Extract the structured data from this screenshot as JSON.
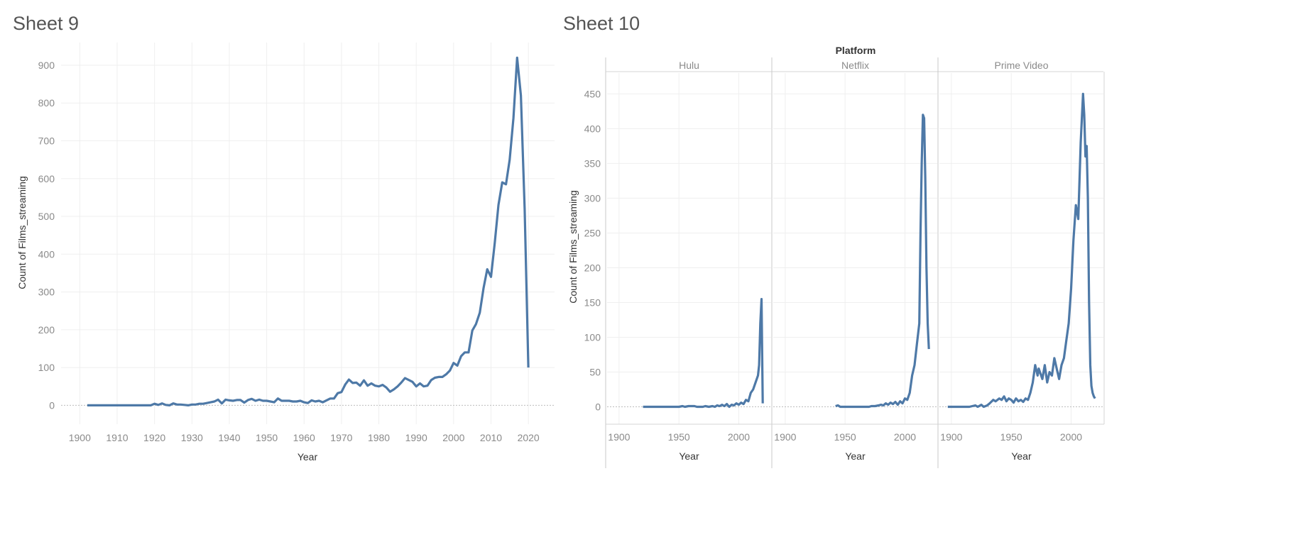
{
  "sheet9": {
    "title": "Sheet 9",
    "chart_data": {
      "type": "line",
      "title": "Sheet 9",
      "xlabel": "Year",
      "ylabel": "Count of Films_streaming",
      "xlim": [
        1895,
        2027
      ],
      "ylim": [
        -50,
        960
      ],
      "xticks": [
        "1900",
        "1910",
        "1920",
        "1930",
        "1940",
        "1950",
        "1960",
        "1970",
        "1980",
        "1990",
        "2000",
        "2010",
        "2020"
      ],
      "yticks": [
        "0",
        "100",
        "200",
        "300",
        "400",
        "500",
        "600",
        "700",
        "800",
        "900"
      ],
      "grid": true,
      "color": "#4e79a7",
      "x": [
        1902,
        1910,
        1915,
        1919,
        1920,
        1921,
        1922,
        1923,
        1924,
        1925,
        1926,
        1927,
        1928,
        1929,
        1930,
        1931,
        1932,
        1933,
        1934,
        1935,
        1936,
        1937,
        1938,
        1939,
        1940,
        1941,
        1942,
        1943,
        1944,
        1945,
        1946,
        1947,
        1948,
        1949,
        1950,
        1951,
        1952,
        1953,
        1954,
        1955,
        1956,
        1957,
        1958,
        1959,
        1960,
        1961,
        1962,
        1963,
        1964,
        1965,
        1966,
        1967,
        1968,
        1969,
        1970,
        1971,
        1972,
        1973,
        1974,
        1975,
        1976,
        1977,
        1978,
        1979,
        1980,
        1981,
        1982,
        1983,
        1984,
        1985,
        1986,
        1987,
        1988,
        1989,
        1990,
        1991,
        1992,
        1993,
        1994,
        1995,
        1996,
        1997,
        1998,
        1999,
        2000,
        2001,
        2002,
        2003,
        2004,
        2005,
        2006,
        2007,
        2008,
        2009,
        2010,
        2011,
        2012,
        2013,
        2014,
        2015,
        2016,
        2017,
        2018,
        2019,
        2020
      ],
      "y": [
        0,
        0,
        0,
        0,
        4,
        1,
        5,
        1,
        0,
        5,
        2,
        2,
        1,
        0,
        2,
        2,
        4,
        4,
        6,
        8,
        10,
        15,
        5,
        15,
        13,
        12,
        14,
        14,
        7,
        14,
        17,
        12,
        15,
        12,
        12,
        10,
        8,
        18,
        12,
        12,
        12,
        10,
        10,
        12,
        8,
        6,
        13,
        10,
        12,
        8,
        13,
        18,
        18,
        32,
        35,
        55,
        68,
        59,
        60,
        52,
        66,
        52,
        58,
        52,
        50,
        54,
        47,
        36,
        42,
        50,
        60,
        72,
        67,
        62,
        50,
        58,
        50,
        52,
        67,
        73,
        75,
        75,
        82,
        92,
        112,
        105,
        130,
        140,
        140,
        198,
        215,
        245,
        310,
        360,
        340,
        430,
        530,
        590,
        585,
        650,
        760,
        920,
        820,
        520,
        100
      ]
    }
  },
  "sheet10": {
    "title": "Sheet 10",
    "facet_header": "Platform",
    "chart_data": {
      "type": "line",
      "title": "Sheet 10",
      "xlabel": "Year",
      "ylabel": "Count of Films_streaming",
      "ylim": [
        -25,
        480
      ],
      "yticks": [
        "0",
        "50",
        "100",
        "150",
        "200",
        "250",
        "300",
        "350",
        "400",
        "450"
      ],
      "xticks": [
        "1900",
        "1950",
        "2000"
      ],
      "grid": true,
      "color": "#4e79a7",
      "panels": [
        {
          "name": "Hulu",
          "xlim": [
            1890,
            2027
          ],
          "x": [
            1920,
            1925,
            1930,
            1935,
            1940,
            1945,
            1950,
            1953,
            1955,
            1958,
            1960,
            1963,
            1965,
            1968,
            1970,
            1972,
            1975,
            1978,
            1980,
            1982,
            1984,
            1986,
            1988,
            1990,
            1992,
            1994,
            1996,
            1998,
            2000,
            2002,
            2004,
            2006,
            2008,
            2010,
            2012,
            2014,
            2016,
            2017,
            2018,
            2019,
            2020
          ],
          "y": [
            0,
            0,
            0,
            0,
            0,
            0,
            0,
            1,
            0,
            1,
            1,
            1,
            0,
            0,
            0,
            1,
            0,
            1,
            0,
            2,
            1,
            3,
            1,
            4,
            0,
            3,
            2,
            5,
            3,
            6,
            4,
            10,
            8,
            20,
            25,
            35,
            45,
            60,
            120,
            155,
            5
          ]
        },
        {
          "name": "Netflix",
          "xlim": [
            1890,
            2027
          ],
          "x": [
            1942,
            1944,
            1946,
            1950,
            1955,
            1960,
            1965,
            1970,
            1972,
            1975,
            1978,
            1980,
            1982,
            1984,
            1986,
            1988,
            1990,
            1992,
            1994,
            1996,
            1998,
            2000,
            2002,
            2004,
            2006,
            2008,
            2010,
            2012,
            2013,
            2014,
            2015,
            2016,
            2017,
            2018,
            2019,
            2020
          ],
          "y": [
            1,
            2,
            0,
            0,
            0,
            0,
            0,
            0,
            1,
            1,
            2,
            3,
            2,
            5,
            3,
            6,
            4,
            7,
            3,
            8,
            5,
            12,
            10,
            20,
            45,
            60,
            90,
            120,
            250,
            350,
            420,
            415,
            330,
            200,
            120,
            83
          ]
        },
        {
          "name": "Prime Video",
          "xlim": [
            1890,
            2027
          ],
          "x": [
            1897,
            1905,
            1915,
            1920,
            1922,
            1925,
            1927,
            1930,
            1932,
            1935,
            1937,
            1940,
            1942,
            1944,
            1946,
            1948,
            1950,
            1952,
            1954,
            1956,
            1958,
            1960,
            1962,
            1964,
            1966,
            1968,
            1970,
            1972,
            1973,
            1974,
            1976,
            1978,
            1980,
            1982,
            1984,
            1986,
            1988,
            1990,
            1992,
            1994,
            1996,
            1998,
            2000,
            2002,
            2004,
            2006,
            2008,
            2010,
            2011,
            2012,
            2013,
            2014,
            2015,
            2016,
            2017,
            2018,
            2019,
            2020
          ],
          "y": [
            0,
            0,
            0,
            2,
            0,
            3,
            0,
            2,
            5,
            10,
            8,
            12,
            10,
            15,
            8,
            12,
            10,
            6,
            12,
            8,
            10,
            7,
            12,
            10,
            20,
            35,
            60,
            45,
            55,
            50,
            40,
            60,
            35,
            50,
            45,
            70,
            55,
            40,
            60,
            70,
            95,
            120,
            170,
            240,
            290,
            270,
            380,
            450,
            420,
            360,
            375,
            300,
            150,
            60,
            30,
            20,
            15,
            12
          ]
        }
      ]
    }
  }
}
